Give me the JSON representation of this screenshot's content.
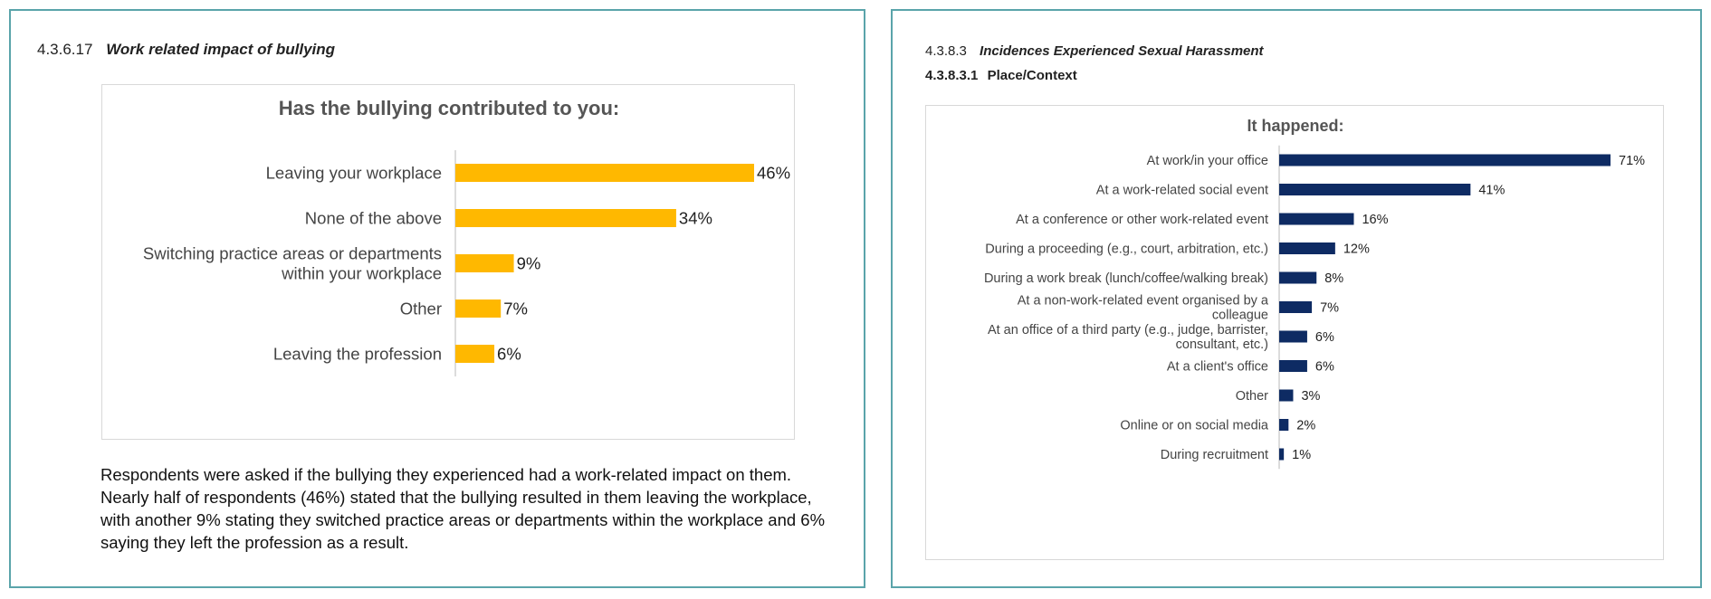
{
  "left": {
    "section_number": "4.3.6.17",
    "section_title": "Work related impact of bullying",
    "paragraph": "Respondents were asked if the bullying they experienced had a work-related impact on them. Nearly half of respondents (46%) stated that the bullying resulted in them leaving the workplace, with another 9% stating they switched practice areas or departments within the workplace and 6% saying they left the profession as a result."
  },
  "right": {
    "section_number": "4.3.8.3",
    "section_title": "Incidences Experienced Sexual Harassment",
    "subsection_number": "4.3.8.3.1",
    "subsection_title": "Place/Context"
  },
  "chart_data": [
    {
      "type": "bar",
      "orientation": "horizontal",
      "title": "Has the bullying contributed to you:",
      "color": "#FFB800",
      "categories": [
        [
          "Leaving your workplace"
        ],
        [
          "None of the above"
        ],
        [
          "Switching practice areas or departments",
          "within your workplace"
        ],
        [
          "Other"
        ],
        [
          "Leaving the profession"
        ]
      ],
      "values": [
        46,
        34,
        9,
        7,
        6
      ],
      "labels": [
        "46%",
        "34%",
        "9%",
        "7%",
        "6%"
      ],
      "unit": "%",
      "xlim": [
        0,
        46
      ]
    },
    {
      "type": "bar",
      "orientation": "horizontal",
      "title": "It happened:",
      "color": "#0E2B63",
      "categories": [
        [
          "At work/in your office"
        ],
        [
          "At a work-related social event"
        ],
        [
          "At a conference or other work-related event"
        ],
        [
          "During a proceeding (e.g., court, arbitration, etc.)"
        ],
        [
          "During a work break (lunch/coffee/walking break)"
        ],
        [
          "At a non-work-related event organised by a",
          "colleague"
        ],
        [
          "At an office of a third party (e.g., judge, barrister,",
          "consultant, etc.)"
        ],
        [
          "At a client's office"
        ],
        [
          "Other"
        ],
        [
          "Online or on social media"
        ],
        [
          "During recruitment"
        ]
      ],
      "values": [
        71,
        41,
        16,
        12,
        8,
        7,
        6,
        6,
        3,
        2,
        1
      ],
      "labels": [
        "71%",
        "41%",
        "16%",
        "12%",
        "8%",
        "7%",
        "6%",
        "6%",
        "3%",
        "2%",
        "1%"
      ],
      "unit": "%",
      "xlim": [
        0,
        71
      ]
    }
  ]
}
